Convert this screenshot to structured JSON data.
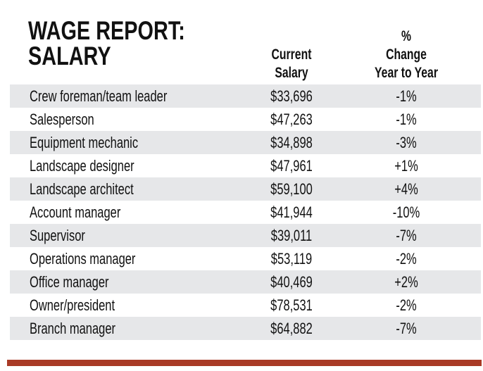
{
  "title_lines": [
    "WAGE REPORT:",
    "SALARY"
  ],
  "chart_data": {
    "type": "table",
    "title": "WAGE REPORT: SALARY",
    "columns": [
      "",
      "Current Salary",
      "% Change Year to Year"
    ],
    "header_lines": {
      "salary": [
        "Current",
        "Salary"
      ],
      "change": [
        "%",
        "Change",
        "Year to Year"
      ]
    },
    "rows": [
      {
        "position": "Crew foreman/team leader",
        "salary": "$33,696",
        "change": "-1%"
      },
      {
        "position": "Salesperson",
        "salary": "$47,263",
        "change": "-1%"
      },
      {
        "position": "Equipment mechanic",
        "salary": "$34,898",
        "change": "-3%"
      },
      {
        "position": "Landscape designer",
        "salary": "$47,961",
        "change": "+1%"
      },
      {
        "position": "Landscape architect",
        "salary": "$59,100",
        "change": "+4%"
      },
      {
        "position": "Account manager",
        "salary": "$41,944",
        "change": "-10%"
      },
      {
        "position": "Supervisor",
        "salary": "$39,011",
        "change": "-7%"
      },
      {
        "position": "Operations manager",
        "salary": "$53,119",
        "change": "-2%"
      },
      {
        "position": "Office manager",
        "salary": "$40,469",
        "change": "+2%"
      },
      {
        "position": "Owner/president",
        "salary": "$78,531",
        "change": "-2%"
      },
      {
        "position": "Branch manager",
        "salary": "$64,882",
        "change": "-7%"
      }
    ]
  },
  "colors": {
    "row_shade": "#e6e7e9",
    "accent_bar": "#a93a26",
    "text": "#111111"
  }
}
